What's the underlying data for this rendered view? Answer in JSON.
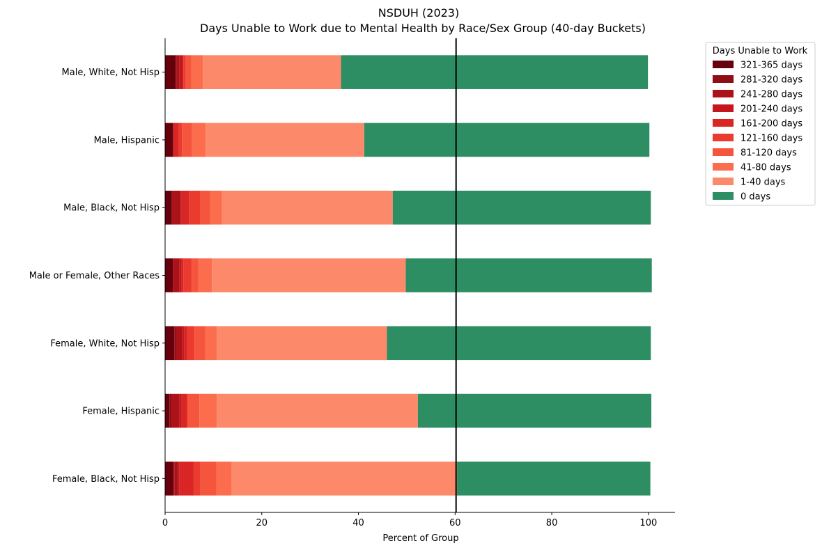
{
  "chart_data": {
    "type": "bar",
    "orientation": "horizontal",
    "stacked": true,
    "title": "NSDUH (2023)",
    "subtitle": "Days Unable to Work due to Mental Health by Race/Sex Group (40-day Buckets)",
    "xlabel": "Percent of Group",
    "ylabel": "",
    "xlim": [
      0,
      105.5
    ],
    "xticks": [
      0,
      20,
      40,
      60,
      80,
      100
    ],
    "reference_line_x": 60.2,
    "grid": false,
    "legend": {
      "title": "Days Unable to Work",
      "placement": "upper right, outside plot"
    },
    "categories": [
      "Male, White, Not Hisp",
      "Male, Hispanic",
      "Male, Black, Not Hisp",
      "Male or Female, Other Races",
      "Female, White, Not Hisp",
      "Female, Hispanic",
      "Female, Black, Not Hisp"
    ],
    "series": [
      {
        "name": "321-365 days",
        "color": "#67000d",
        "values": [
          2.1,
          1.6,
          1.4,
          1.6,
          1.9,
          0.9,
          1.6
        ]
      },
      {
        "name": "281-320 days",
        "color": "#8f0d15",
        "values": [
          0.3,
          0.1,
          0.0,
          0.0,
          0.4,
          0.4,
          0.3
        ]
      },
      {
        "name": "241-280 days",
        "color": "#ab1318",
        "values": [
          0.6,
          0.1,
          1.8,
          1.4,
          1.2,
          1.6,
          0.8
        ]
      },
      {
        "name": "201-240 days",
        "color": "#c4161c",
        "values": [
          0.6,
          0.0,
          0.2,
          0.4,
          0.5,
          0.5,
          0.3
        ]
      },
      {
        "name": "161-200 days",
        "color": "#d92523",
        "values": [
          0.2,
          1.0,
          1.6,
          0.4,
          0.6,
          1.2,
          2.9
        ]
      },
      {
        "name": "121-160 days",
        "color": "#eb3b2f",
        "values": [
          0.5,
          0.7,
          2.3,
          1.7,
          1.5,
          0.0,
          1.4
        ]
      },
      {
        "name": "81-120 days",
        "color": "#f5553d",
        "values": [
          1.1,
          2.1,
          2.0,
          1.4,
          2.2,
          2.5,
          3.3
        ]
      },
      {
        "name": "41-80 days",
        "color": "#fb6d4d",
        "values": [
          2.4,
          2.8,
          2.5,
          2.8,
          2.4,
          3.6,
          3.2
        ]
      },
      {
        "name": "1-40 days",
        "color": "#fc8a6a",
        "values": [
          28.6,
          32.8,
          35.3,
          40.1,
          35.2,
          41.6,
          46.6
        ]
      },
      {
        "name": "0 days",
        "color": "#2e8e63",
        "values": [
          63.5,
          59.0,
          53.4,
          50.9,
          54.6,
          48.3,
          40.0
        ]
      }
    ]
  }
}
